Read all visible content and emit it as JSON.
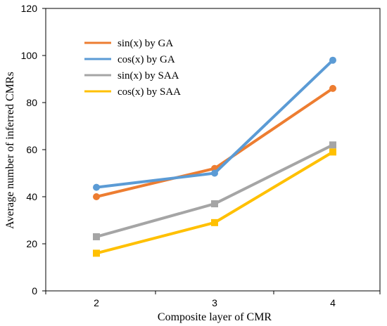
{
  "chart_data": {
    "type": "line",
    "title": "",
    "xlabel": "Composite layer of CMR",
    "ylabel": "Average number of inferred CMRs",
    "categories": [
      "2",
      "3",
      "4"
    ],
    "ylim": [
      0,
      120
    ],
    "yticks": [
      0,
      20,
      40,
      60,
      80,
      100,
      120
    ],
    "grid": false,
    "legend_position": "top-left",
    "series": [
      {
        "name": "sin(x) by GA",
        "color": "#ED7D31",
        "marker": "circle",
        "values": [
          40,
          52,
          86
        ]
      },
      {
        "name": "cos(x) by GA",
        "color": "#5B9BD5",
        "marker": "circle",
        "values": [
          44,
          50,
          98
        ]
      },
      {
        "name": "sin(x) by SAA",
        "color": "#A5A5A5",
        "marker": "square",
        "values": [
          23,
          37,
          62
        ]
      },
      {
        "name": "cos(x) by SAA",
        "color": "#FFC000",
        "marker": "square",
        "values": [
          16,
          29,
          59
        ]
      }
    ]
  }
}
